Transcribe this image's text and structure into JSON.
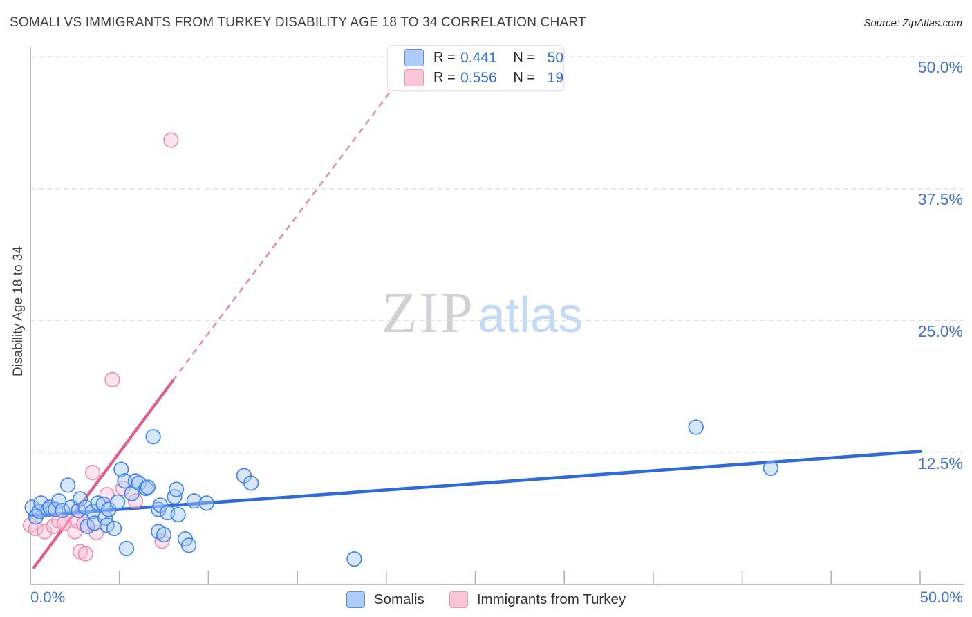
{
  "header": {
    "title": "SOMALI VS IMMIGRANTS FROM TURKEY DISABILITY AGE 18 TO 34 CORRELATION CHART",
    "source": "Source: ZipAtlas.com"
  },
  "axes": {
    "y_label": "Disability Age 18 to 34",
    "y_ticks": [
      "50.0%",
      "37.5%",
      "25.0%",
      "12.5%"
    ],
    "x_min_label": "0.0%",
    "x_max_label": "50.0%"
  },
  "legend_box": {
    "rows": [
      {
        "series": "Somalis",
        "r_label": "R =",
        "r_value": "0.441",
        "n_label": "N =",
        "n_value": "50"
      },
      {
        "series": "Immigrants from Turkey",
        "r_label": "R =",
        "r_value": "0.556",
        "n_label": "N =",
        "n_value": "19"
      }
    ]
  },
  "bottom_legend": [
    {
      "label": "Somalis"
    },
    {
      "label": "Immigrants from Turkey"
    }
  ],
  "watermark": {
    "zip": "ZIP",
    "atlas": "atlas"
  },
  "colors": {
    "blue_marker_fill": "#a9c7f5",
    "blue_marker_stroke": "#4285f4",
    "blue_trend": "#2e6bd9",
    "pink_marker_fill": "#f9c2d6",
    "pink_marker_stroke": "#f290b2",
    "pink_trend": "#e45c8c",
    "grid": "#dfdfdf",
    "axis": "#aaaaaa",
    "tick": "#b0b0b0",
    "tick_label_blue": "#3d74d6"
  },
  "chart_data": {
    "type": "scatter",
    "title": "SOMALI VS IMMIGRANTS FROM TURKEY DISABILITY AGE 18 TO 34 CORRELATION CHART",
    "xlabel": "",
    "ylabel": "Disability Age 18 to 34",
    "xlim": [
      0,
      50
    ],
    "ylim": [
      0,
      50.9
    ],
    "x_tick_step": 5,
    "y_gridlines": [
      12.5,
      25,
      37.5,
      50
    ],
    "grid": "horizontal-dashed",
    "legend_position": "top-center",
    "series": [
      {
        "name": "Somalis",
        "R": 0.441,
        "N": 50,
        "points": [
          [
            0.1,
            7.3
          ],
          [
            0.3,
            6.4
          ],
          [
            0.5,
            6.9
          ],
          [
            0.6,
            7.7
          ],
          [
            1.0,
            7.1
          ],
          [
            1.1,
            7.3
          ],
          [
            1.4,
            7.1
          ],
          [
            1.6,
            7.9
          ],
          [
            1.8,
            7.0
          ],
          [
            2.1,
            9.4
          ],
          [
            2.3,
            7.3
          ],
          [
            2.7,
            7.0
          ],
          [
            2.8,
            8.1
          ],
          [
            3.1,
            7.3
          ],
          [
            3.2,
            5.5
          ],
          [
            3.5,
            6.9
          ],
          [
            3.6,
            5.8
          ],
          [
            3.8,
            7.7
          ],
          [
            4.1,
            7.6
          ],
          [
            4.2,
            6.3
          ],
          [
            4.3,
            5.6
          ],
          [
            4.4,
            7.1
          ],
          [
            4.7,
            5.3
          ],
          [
            4.9,
            7.8
          ],
          [
            5.1,
            10.9
          ],
          [
            5.3,
            9.8
          ],
          [
            5.4,
            3.4
          ],
          [
            5.7,
            8.6
          ],
          [
            5.9,
            9.8
          ],
          [
            6.1,
            9.6
          ],
          [
            6.5,
            9.1
          ],
          [
            6.6,
            9.2
          ],
          [
            6.9,
            14.0
          ],
          [
            7.2,
            5.0
          ],
          [
            7.2,
            7.1
          ],
          [
            7.3,
            7.5
          ],
          [
            7.5,
            4.7
          ],
          [
            7.7,
            6.8
          ],
          [
            8.1,
            8.3
          ],
          [
            8.2,
            9.0
          ],
          [
            8.3,
            6.6
          ],
          [
            8.7,
            4.3
          ],
          [
            8.9,
            3.7
          ],
          [
            9.2,
            7.9
          ],
          [
            9.9,
            7.7
          ],
          [
            12.0,
            10.3
          ],
          [
            12.4,
            9.6
          ],
          [
            18.2,
            2.4
          ],
          [
            37.4,
            14.9
          ],
          [
            41.6,
            11.0
          ]
        ],
        "trend_solid": [
          [
            0,
            6.5
          ],
          [
            50,
            12.6
          ]
        ]
      },
      {
        "name": "Immigrants from Turkey",
        "R": 0.556,
        "N": 19,
        "points": [
          [
            0.0,
            5.6
          ],
          [
            0.3,
            5.3
          ],
          [
            0.8,
            5.0
          ],
          [
            1.3,
            5.5
          ],
          [
            1.6,
            6.0
          ],
          [
            1.9,
            5.8
          ],
          [
            2.5,
            5.0
          ],
          [
            2.6,
            6.0
          ],
          [
            2.8,
            3.1
          ],
          [
            3.0,
            5.7
          ],
          [
            3.1,
            2.9
          ],
          [
            3.5,
            10.6
          ],
          [
            3.7,
            4.9
          ],
          [
            4.3,
            8.5
          ],
          [
            4.6,
            19.4
          ],
          [
            5.2,
            9.1
          ],
          [
            5.9,
            7.9
          ],
          [
            7.4,
            4.1
          ],
          [
            7.9,
            42.1
          ]
        ],
        "trend_solid": [
          [
            0.2,
            1.6
          ],
          [
            8.0,
            19.3
          ]
        ],
        "trend_dashed": [
          [
            8.0,
            19.3
          ],
          [
            22.1,
            50.9
          ]
        ]
      }
    ]
  }
}
